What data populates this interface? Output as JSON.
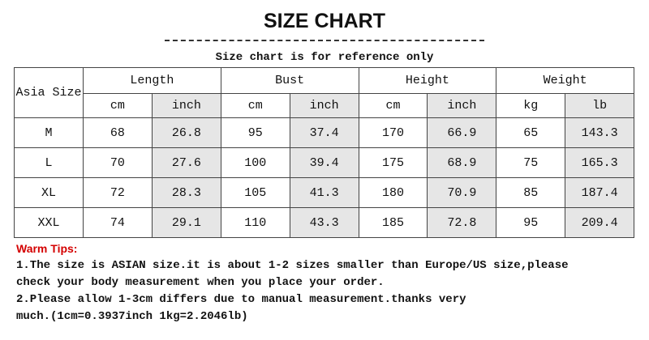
{
  "title": "SIZE CHART",
  "subtitle": "Size chart is for reference only",
  "table": {
    "size_header": "Asia Size",
    "groups": [
      {
        "label": "Length",
        "units": [
          "cm",
          "inch"
        ]
      },
      {
        "label": "Bust",
        "units": [
          "cm",
          "inch"
        ]
      },
      {
        "label": "Height",
        "units": [
          "cm",
          "inch"
        ]
      },
      {
        "label": "Weight",
        "units": [
          "kg",
          "lb"
        ]
      }
    ],
    "rows": [
      [
        "M",
        "68",
        "26.8",
        "95",
        "37.4",
        "170",
        "66.9",
        "65",
        "143.3"
      ],
      [
        "L",
        "70",
        "27.6",
        "100",
        "39.4",
        "175",
        "68.9",
        "75",
        "165.3"
      ],
      [
        "XL",
        "72",
        "28.3",
        "105",
        "41.3",
        "180",
        "70.9",
        "85",
        "187.4"
      ],
      [
        "XXL",
        "74",
        "29.1",
        "110",
        "43.3",
        "185",
        "72.8",
        "95",
        "209.4"
      ]
    ]
  },
  "tips": {
    "heading": "Warm Tips:",
    "lines": [
      "1.The size is ASIAN size.it is about 1-2 sizes smaller than Europe/US size,please",
      "check your body measurement when you place your order.",
      "2.Please allow 1-3cm differs due to manual measurement.thanks very",
      "much.(1cm=0.3937inch 1kg=2.2046lb)"
    ]
  },
  "colors": {
    "tips_heading": "#d40000",
    "shaded_column": "#e6e6e6"
  }
}
